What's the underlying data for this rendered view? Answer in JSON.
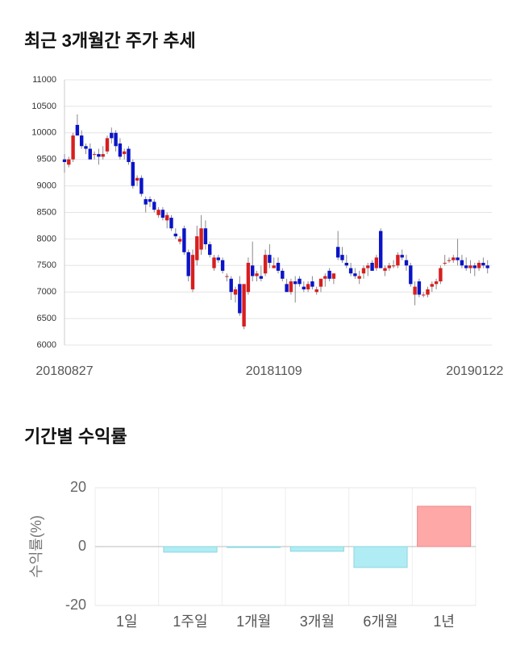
{
  "chart_data": [
    {
      "type": "candlestick",
      "title": "최근 3개월간 주가 추세",
      "categories": [
        "20180827",
        null,
        null,
        null,
        null,
        null,
        null,
        null,
        null,
        null,
        null,
        null,
        null,
        null,
        null,
        null,
        null,
        null,
        null,
        null,
        null,
        null,
        null,
        null,
        null,
        null,
        null,
        null,
        null,
        null,
        null,
        null,
        null,
        null,
        null,
        null,
        null,
        null,
        null,
        null,
        null,
        null,
        null,
        null,
        null,
        null,
        null,
        null,
        null,
        "20181109",
        null,
        null,
        null,
        null,
        null,
        null,
        null,
        null,
        null,
        null,
        null,
        null,
        null,
        null,
        null,
        null,
        null,
        null,
        null,
        null,
        null,
        null,
        null,
        null,
        null,
        null,
        null,
        null,
        null,
        null,
        null,
        null,
        null,
        null,
        null,
        null,
        null,
        null,
        null,
        null,
        null,
        null,
        null,
        null,
        null,
        null,
        "20190122",
        null,
        null,
        null
      ],
      "open": [
        9500,
        9400,
        9500,
        10150,
        9950,
        9750,
        9700,
        9600,
        9600,
        9550,
        9650,
        10000,
        10000,
        9800,
        9600,
        9700,
        9450,
        9100,
        9150,
        8750,
        8750,
        8700,
        8450,
        8550,
        8350,
        8400,
        8100,
        7950,
        8200,
        7750,
        7050,
        7600,
        7800,
        8200,
        7900,
        7450,
        7650,
        7600,
        7300,
        7250,
        6950,
        7150,
        6350,
        7000,
        7500,
        7300,
        7300,
        7350,
        7700,
        7450,
        7550,
        7400,
        7150,
        7000,
        7200,
        7250,
        7100,
        7050,
        7200,
        7000,
        7100,
        7250,
        7400,
        7250,
        7850,
        7700,
        7550,
        7450,
        7350,
        7250,
        7350,
        7450,
        7550,
        7450,
        8150,
        7400,
        7450,
        7500,
        7500,
        7700,
        7600,
        7500,
        6950,
        7200,
        6950,
        6950,
        7100,
        7150,
        7200,
        7550,
        7600,
        7600,
        7650,
        7600,
        7500,
        7450,
        7500,
        7450,
        7550,
        7500
      ],
      "high": [
        9600,
        9550,
        10000,
        10350,
        10050,
        9800,
        9800,
        9650,
        9700,
        9750,
        9950,
        10100,
        10050,
        9900,
        9700,
        9750,
        9500,
        9200,
        9200,
        8800,
        8800,
        8750,
        8600,
        8600,
        8500,
        8450,
        8200,
        8050,
        8250,
        7800,
        7800,
        8250,
        8450,
        8350,
        7950,
        7700,
        7700,
        7650,
        7350,
        7300,
        7100,
        7300,
        7100,
        7650,
        7950,
        7400,
        7500,
        7800,
        7900,
        7650,
        7650,
        7450,
        7250,
        7250,
        7300,
        7300,
        7200,
        7200,
        7300,
        7100,
        7250,
        7350,
        7450,
        7350,
        8150,
        7850,
        7700,
        7550,
        7450,
        7400,
        7500,
        7550,
        7600,
        7700,
        8200,
        7500,
        7550,
        7600,
        7750,
        7800,
        7700,
        7550,
        7200,
        7250,
        7000,
        7100,
        7200,
        7250,
        7500,
        7700,
        7650,
        7700,
        8000,
        7700,
        7650,
        7600,
        7550,
        7600,
        7650,
        7600
      ],
      "low": [
        9250,
        9350,
        9450,
        9950,
        9700,
        9600,
        9500,
        9500,
        9400,
        9500,
        9600,
        9800,
        9650,
        9500,
        9500,
        9400,
        8950,
        9000,
        8800,
        8500,
        8600,
        8500,
        8400,
        8350,
        8200,
        8150,
        8000,
        7900,
        7700,
        7200,
        7000,
        7500,
        7700,
        7800,
        7650,
        7400,
        7550,
        7350,
        7200,
        6850,
        6800,
        6550,
        6300,
        6950,
        7200,
        7200,
        7200,
        7300,
        7450,
        7450,
        7350,
        7200,
        7000,
        6950,
        6800,
        7100,
        7000,
        7000,
        7050,
        6950,
        7000,
        7100,
        7200,
        7150,
        7600,
        7550,
        7450,
        7300,
        7250,
        7150,
        7250,
        7300,
        7400,
        7400,
        7450,
        7300,
        7400,
        7450,
        7450,
        7600,
        7400,
        7100,
        6750,
        6900,
        6900,
        6900,
        7000,
        7050,
        7150,
        7500,
        7550,
        7550,
        7500,
        7450,
        7400,
        7350,
        7300,
        7400,
        7450,
        7350
      ],
      "close": [
        9450,
        9500,
        9950,
        9950,
        9750,
        9700,
        9500,
        9600,
        9550,
        9600,
        9900,
        9900,
        9750,
        9550,
        9650,
        9450,
        9000,
        9150,
        8850,
        8650,
        8700,
        8550,
        8550,
        8400,
        8450,
        8200,
        8050,
        8000,
        7750,
        7300,
        7700,
        8050,
        8200,
        7900,
        7700,
        7650,
        7600,
        7400,
        7300,
        7000,
        7050,
        6600,
        7150,
        7550,
        7300,
        7350,
        7250,
        7700,
        7550,
        7500,
        7400,
        7250,
        7000,
        7200,
        7150,
        7150,
        7050,
        7150,
        7100,
        7050,
        7250,
        7300,
        7250,
        7350,
        7650,
        7600,
        7500,
        7350,
        7300,
        7300,
        7450,
        7500,
        7400,
        7650,
        7450,
        7450,
        7500,
        7500,
        7700,
        7650,
        7500,
        7150,
        7100,
        6950,
        6950,
        7050,
        7150,
        7200,
        7450,
        7550,
        7600,
        7650,
        7600,
        7500,
        7450,
        7500,
        7450,
        7550,
        7500,
        7450
      ],
      "up_color": "#d81e1e",
      "down_color": "#0a14c8",
      "ylim": [
        6000,
        11000
      ],
      "yticks": [
        6000,
        6500,
        7000,
        7500,
        8000,
        8500,
        9000,
        9500,
        10000,
        10500,
        11000
      ],
      "grid": true
    },
    {
      "type": "bar",
      "title": "기간별 수익률",
      "ylabel": "수익률(%)",
      "categories": [
        "1일",
        "1주일",
        "1개월",
        "3개월",
        "6개월",
        "1년"
      ],
      "values": [
        0,
        -1.9,
        -0.3,
        -1.6,
        -7.1,
        13.7
      ],
      "positive_color": "#ffa8a8",
      "negative_color": "#b0ecf4",
      "ylim": [
        -20,
        20
      ],
      "yticks": [
        -20,
        0,
        20
      ],
      "grid": true
    }
  ]
}
